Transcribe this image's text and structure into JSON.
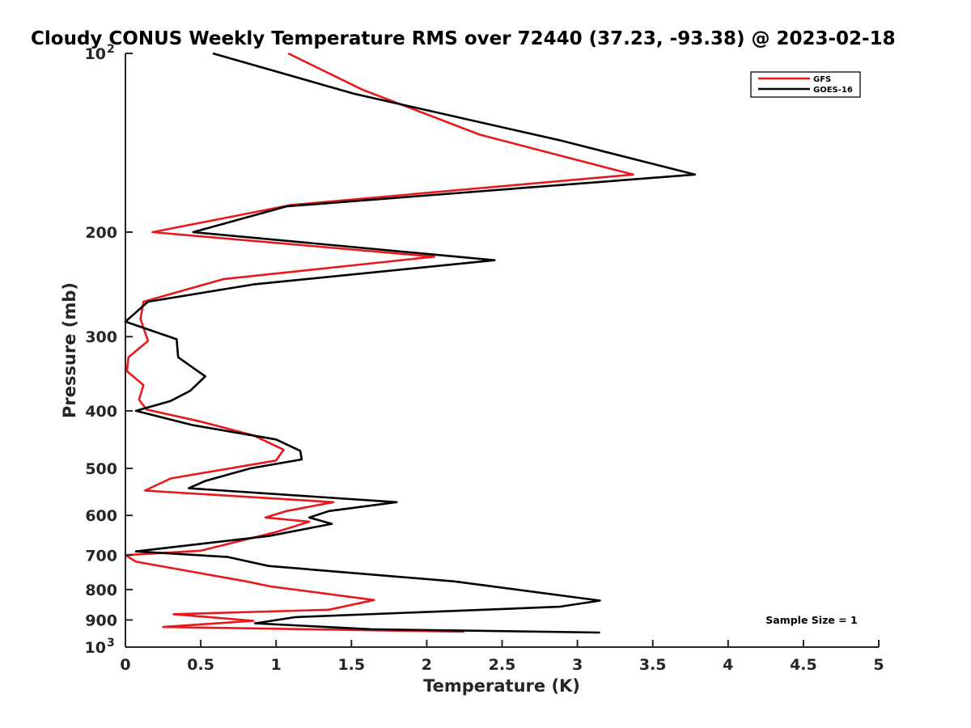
{
  "chart_data": {
    "type": "line",
    "title": "Cloudy CONUS Weekly Temperature RMS over 72440 (37.23, -93.38) @ 2023-02-18",
    "xlabel": "Temperature (K)",
    "ylabel": "Pressure (mb)",
    "xlim": [
      0,
      5
    ],
    "ylim": [
      100,
      1000
    ],
    "y_scale": "log",
    "y_reversed": true,
    "grid": false,
    "legend_position": "top-right",
    "x_ticks": [
      {
        "value": 0,
        "label": "0"
      },
      {
        "value": 0.5,
        "label": "0.5"
      },
      {
        "value": 1,
        "label": "1"
      },
      {
        "value": 1.5,
        "label": "1.5"
      },
      {
        "value": 2,
        "label": "2"
      },
      {
        "value": 2.5,
        "label": "2.5"
      },
      {
        "value": 3,
        "label": "3"
      },
      {
        "value": 3.5,
        "label": "3.5"
      },
      {
        "value": 4,
        "label": "4"
      },
      {
        "value": 4.5,
        "label": "4.5"
      },
      {
        "value": 5,
        "label": "5"
      }
    ],
    "y_ticks": [
      {
        "value": 100,
        "label": "10",
        "exponent": "2"
      },
      {
        "value": 200,
        "label": "200"
      },
      {
        "value": 300,
        "label": "300"
      },
      {
        "value": 400,
        "label": "400"
      },
      {
        "value": 500,
        "label": "500"
      },
      {
        "value": 600,
        "label": "600"
      },
      {
        "value": 700,
        "label": "700"
      },
      {
        "value": 800,
        "label": "800"
      },
      {
        "value": 900,
        "label": "900"
      },
      {
        "value": 1000,
        "label": "10",
        "exponent": "3"
      }
    ],
    "annotations": [
      {
        "id": "sample-size",
        "text": "Sample Size = 1"
      }
    ],
    "series": [
      {
        "name": "GFS",
        "color": "#e8191c",
        "points": [
          [
            1.08,
            100
          ],
          [
            1.57,
            115
          ],
          [
            2.35,
            137
          ],
          [
            3.37,
            160
          ],
          [
            1.1,
            180
          ],
          [
            0.18,
            200
          ],
          [
            2.05,
            220
          ],
          [
            0.65,
            240
          ],
          [
            0.12,
            262
          ],
          [
            0.1,
            280
          ],
          [
            0.15,
            305
          ],
          [
            0.02,
            325
          ],
          [
            0.01,
            343
          ],
          [
            0.12,
            362
          ],
          [
            0.09,
            383
          ],
          [
            0.14,
            398
          ],
          [
            0.5,
            417
          ],
          [
            0.85,
            440
          ],
          [
            1.05,
            465
          ],
          [
            1.0,
            485
          ],
          [
            0.3,
            520
          ],
          [
            0.13,
            545
          ],
          [
            1.38,
            570
          ],
          [
            1.07,
            590
          ],
          [
            0.93,
            605
          ],
          [
            1.22,
            615
          ],
          [
            1.0,
            640
          ],
          [
            0.5,
            688
          ],
          [
            0.0,
            700
          ],
          [
            0.07,
            718
          ],
          [
            0.8,
            775
          ],
          [
            0.96,
            790
          ],
          [
            1.65,
            833
          ],
          [
            1.35,
            865
          ],
          [
            0.32,
            880
          ],
          [
            0.85,
            903
          ],
          [
            0.25,
            925
          ],
          [
            2.25,
            942
          ]
        ]
      },
      {
        "name": "GOES-16",
        "color": "#000000",
        "points": [
          [
            0.58,
            100
          ],
          [
            1.52,
            117
          ],
          [
            2.88,
            140
          ],
          [
            3.78,
            160
          ],
          [
            1.07,
            181
          ],
          [
            0.45,
            200
          ],
          [
            2.45,
            223
          ],
          [
            0.85,
            245
          ],
          [
            0.15,
            262
          ],
          [
            0.0,
            283
          ],
          [
            0.34,
            303
          ],
          [
            0.35,
            325
          ],
          [
            0.53,
            350
          ],
          [
            0.43,
            370
          ],
          [
            0.3,
            385
          ],
          [
            0.07,
            400
          ],
          [
            0.45,
            423
          ],
          [
            1.0,
            447
          ],
          [
            1.16,
            467
          ],
          [
            1.17,
            483
          ],
          [
            0.83,
            500
          ],
          [
            0.53,
            525
          ],
          [
            0.42,
            540
          ],
          [
            1.8,
            570
          ],
          [
            1.35,
            590
          ],
          [
            1.22,
            605
          ],
          [
            1.37,
            620
          ],
          [
            0.95,
            650
          ],
          [
            0.07,
            690
          ],
          [
            0.68,
            705
          ],
          [
            0.95,
            730
          ],
          [
            2.18,
            775
          ],
          [
            3.15,
            835
          ],
          [
            2.88,
            855
          ],
          [
            1.13,
            890
          ],
          [
            0.86,
            912
          ],
          [
            1.63,
            933
          ],
          [
            3.15,
            945
          ]
        ]
      }
    ]
  }
}
